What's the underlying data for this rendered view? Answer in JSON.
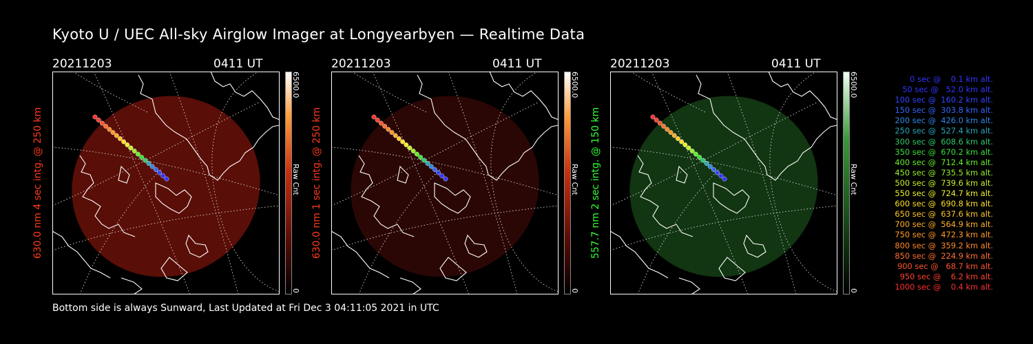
{
  "title": "Kyoto U / UEC All-sky Airglow Imager at Longyearbyen — Realtime Data",
  "footer": "Bottom side is always Sunward, Last Updated at Fri Dec  3 04:11:05 2021 in UTC",
  "panels": [
    {
      "date": "20211203",
      "time": "0411 UT",
      "label": "630.0 nm 4 sec intg. @ 250 km",
      "label_color": "#ff3a1a",
      "cbar_max": "6500.0",
      "cbar_min": "0",
      "cbar_unit": "Raw Cnt",
      "glow_color": "#5a0e08",
      "glow_opacity": 1.0
    },
    {
      "date": "20211203",
      "time": "0411 UT",
      "label": "630.0 nm 1 sec intg. @ 250 km",
      "label_color": "#ff3a1a",
      "cbar_max": "6500.0",
      "cbar_min": "0",
      "cbar_unit": "Raw Cnt",
      "glow_color": "#2a0705",
      "glow_opacity": 1.0
    },
    {
      "date": "20211203",
      "time": "0411 UT",
      "label": "557.7 nm 2 sec intg. @ 150 km",
      "label_color": "#33ff33",
      "cbar_max": "6500.0",
      "cbar_min": "0",
      "cbar_unit": "Raw Cnt",
      "glow_color": "#123512",
      "glow_opacity": 1.0
    }
  ],
  "legend": [
    {
      "text": "   0 sec @    0.1 km alt.",
      "color": "#3333ff"
    },
    {
      "text": "  50 sec @   52.0 km alt.",
      "color": "#3333ff"
    },
    {
      "text": " 100 sec @  160.2 km alt.",
      "color": "#3344ff"
    },
    {
      "text": " 150 sec @  303.8 km alt.",
      "color": "#3366ff"
    },
    {
      "text": " 200 sec @  426.0 km alt.",
      "color": "#2f86e6"
    },
    {
      "text": " 250 sec @  527.4 km alt.",
      "color": "#2aa6b8"
    },
    {
      "text": " 300 sec @  608.6 km alt.",
      "color": "#2fc86c"
    },
    {
      "text": " 350 sec @  670.2 km alt.",
      "color": "#39e03b"
    },
    {
      "text": " 400 sec @  712.4 km alt.",
      "color": "#66ee2a"
    },
    {
      "text": " 450 sec @  735.5 km alt.",
      "color": "#96f02a"
    },
    {
      "text": " 500 sec @  739.6 km alt.",
      "color": "#c8f02a"
    },
    {
      "text": " 550 sec @  724.7 km alt.",
      "color": "#eef02a"
    },
    {
      "text": " 600 sec @  690.8 km alt.",
      "color": "#ffe02a"
    },
    {
      "text": " 650 sec @  637.6 km alt.",
      "color": "#ffc82a"
    },
    {
      "text": " 700 sec @  564.9 km alt.",
      "color": "#ffb02a"
    },
    {
      "text": " 750 sec @  472.3 km alt.",
      "color": "#ff9a2a"
    },
    {
      "text": " 800 sec @  359.2 km alt.",
      "color": "#ff882a"
    },
    {
      "text": " 850 sec @  224.9 km alt.",
      "color": "#ff7030"
    },
    {
      "text": " 900 sec @   68.7 km alt.",
      "color": "#ff5530"
    },
    {
      "text": " 950 sec @    6.2 km alt.",
      "color": "#ff4030"
    },
    {
      "text": "1000 sec @    0.4 km alt.",
      "color": "#ff3030"
    }
  ]
}
